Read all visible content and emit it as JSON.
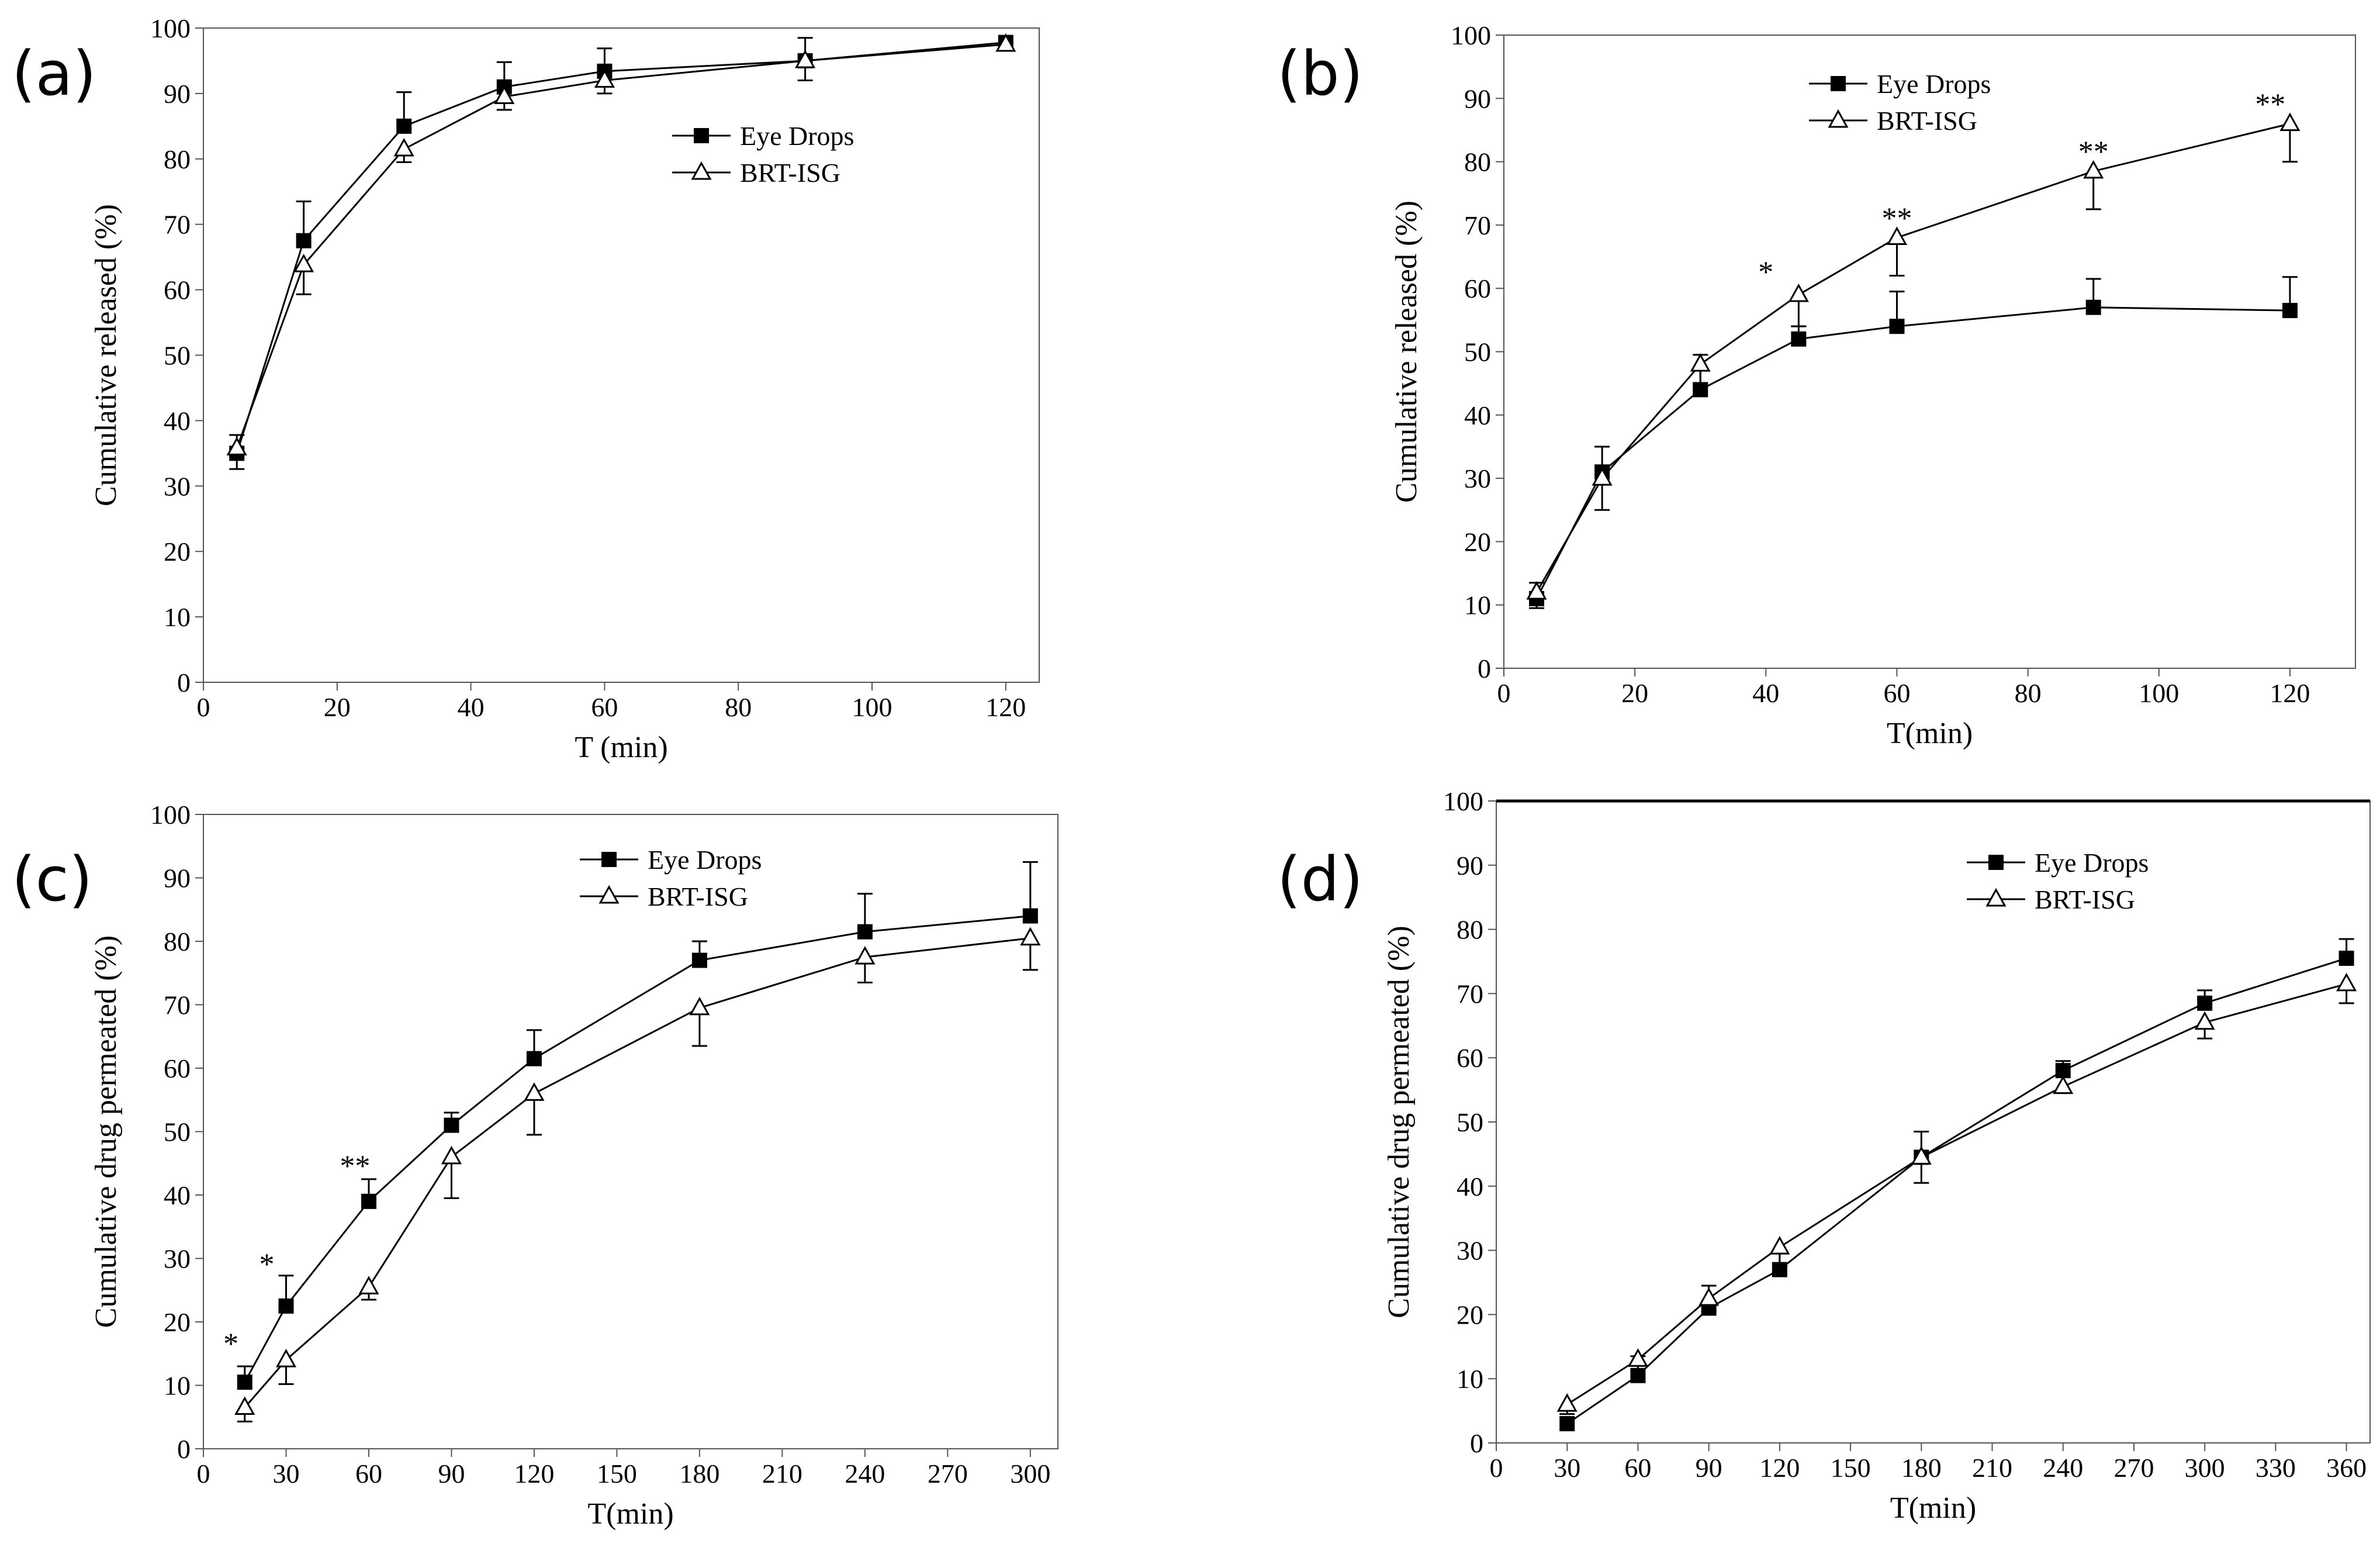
{
  "chart_data": [
    {
      "type": "line",
      "panel_label": "(a)",
      "xlabel": "T (min)",
      "ylabel": "Cumulative released (%)",
      "xlim": [
        0,
        125
      ],
      "ylim": [
        0,
        100
      ],
      "xticks": [
        0,
        20,
        40,
        60,
        80,
        100,
        120
      ],
      "yticks": [
        0,
        10,
        20,
        30,
        40,
        50,
        60,
        70,
        80,
        90,
        100
      ],
      "legend_position": "upper-right",
      "series": [
        {
          "name": "Eye Drops",
          "marker": "square-filled",
          "x": [
            5,
            15,
            30,
            45,
            60,
            90,
            120
          ],
          "y": [
            35.0,
            67.5,
            85.0,
            91.0,
            93.4,
            95.0,
            97.8
          ],
          "err": [
            2.8,
            6.0,
            5.2,
            3.8,
            3.5,
            3.5,
            0.8
          ]
        },
        {
          "name": "BRT-ISG",
          "marker": "triangle-open",
          "x": [
            5,
            15,
            30,
            45,
            60,
            90,
            120
          ],
          "y": [
            35.8,
            63.8,
            81.5,
            89.5,
            92.0,
            95.0,
            97.5
          ],
          "err": [
            3.2,
            4.5,
            2.0,
            2.0,
            2.0,
            3.0,
            0.8
          ]
        }
      ],
      "annotations": []
    },
    {
      "type": "line",
      "panel_label": "(b)",
      "xlabel": "T(min)",
      "ylabel": "Cumulative released (%)",
      "xlim": [
        0,
        130
      ],
      "ylim": [
        0,
        100
      ],
      "xticks": [
        0,
        20,
        40,
        60,
        80,
        100,
        120
      ],
      "yticks": [
        0,
        10,
        20,
        30,
        40,
        50,
        60,
        70,
        80,
        90,
        100
      ],
      "legend_position": "upper-center",
      "series": [
        {
          "name": "Eye Drops",
          "marker": "square-filled",
          "x": [
            5,
            15,
            30,
            45,
            60,
            90,
            120
          ],
          "y": [
            11.0,
            31.0,
            44.0,
            52.0,
            54.0,
            57.0,
            56.5
          ],
          "err": [
            2.5,
            4.0,
            5.5,
            2.0,
            5.5,
            4.5,
            5.3
          ]
        },
        {
          "name": "BRT-ISG",
          "marker": "triangle-open",
          "x": [
            5,
            15,
            30,
            45,
            60,
            90,
            120
          ],
          "y": [
            12.0,
            30.0,
            48.0,
            59.0,
            68.0,
            78.5,
            86.0
          ],
          "err": [
            2.5,
            5.0,
            3.0,
            5.0,
            6.0,
            6.0,
            6.0
          ]
        }
      ],
      "annotations": [
        {
          "text": "*",
          "x": 40,
          "y": 61
        },
        {
          "text": "**",
          "x": 60,
          "y": 69.5
        },
        {
          "text": "**",
          "x": 90,
          "y": 80
        },
        {
          "text": "**",
          "x": 117,
          "y": 87.5
        }
      ]
    },
    {
      "type": "line",
      "panel_label": "(c)",
      "xlabel": "T(min)",
      "ylabel": "Cumulative drug permeated (%)",
      "xlim": [
        0,
        310
      ],
      "ylim": [
        0,
        100
      ],
      "xticks": [
        0,
        30,
        60,
        90,
        120,
        150,
        180,
        210,
        240,
        270,
        300
      ],
      "yticks": [
        0,
        10,
        20,
        30,
        40,
        50,
        60,
        70,
        80,
        90,
        100
      ],
      "legend_position": "upper-center",
      "series": [
        {
          "name": "Eye Drops",
          "marker": "square-filled",
          "x": [
            15,
            30,
            60,
            90,
            120,
            180,
            240,
            300
          ],
          "y": [
            10.5,
            22.5,
            39.0,
            51.0,
            61.5,
            77.0,
            81.5,
            84.0
          ],
          "err": [
            2.5,
            4.8,
            3.5,
            2.0,
            4.5,
            3.0,
            6.0,
            8.5
          ]
        },
        {
          "name": "BRT-ISG",
          "marker": "triangle-open",
          "x": [
            15,
            30,
            60,
            90,
            120,
            180,
            240,
            300
          ],
          "y": [
            6.5,
            14.0,
            25.5,
            46.0,
            56.0,
            69.5,
            77.5,
            80.5
          ],
          "err": [
            2.2,
            3.8,
            2.0,
            6.5,
            6.5,
            6.0,
            4.0,
            5.0
          ]
        }
      ],
      "annotations": [
        {
          "text": "*",
          "x": 10,
          "y": 15
        },
        {
          "text": "*",
          "x": 23,
          "y": 27.5
        },
        {
          "text": "**",
          "x": 55,
          "y": 43
        }
      ]
    },
    {
      "type": "line",
      "panel_label": "(d)",
      "xlabel": "T(min)",
      "ylabel": "Cumulative drug permeated (%)",
      "xlim": [
        0,
        370
      ],
      "ylim": [
        0,
        100
      ],
      "xticks": [
        0,
        30,
        60,
        90,
        120,
        150,
        180,
        210,
        240,
        270,
        300,
        330,
        360
      ],
      "yticks": [
        0,
        10,
        20,
        30,
        40,
        50,
        60,
        70,
        80,
        90,
        100
      ],
      "legend_position": "upper-right",
      "series": [
        {
          "name": "Eye Drops",
          "marker": "square-filled",
          "x": [
            30,
            60,
            90,
            120,
            180,
            240,
            300,
            360
          ],
          "y": [
            3.0,
            10.5,
            21.0,
            27.0,
            44.5,
            58.0,
            68.5,
            75.5
          ],
          "err": [
            0.0,
            3.0,
            3.5,
            2.5,
            4.0,
            1.5,
            2.0,
            3.0
          ]
        },
        {
          "name": "BRT-ISG",
          "marker": "triangle-open",
          "x": [
            30,
            60,
            90,
            120,
            180,
            240,
            300,
            360
          ],
          "y": [
            6.0,
            13.0,
            22.5,
            30.5,
            44.5,
            55.5,
            65.5,
            71.5
          ],
          "err": [
            1.5,
            1.5,
            2.0,
            3.0,
            4.0,
            1.0,
            2.5,
            3.0
          ]
        }
      ],
      "annotations": []
    }
  ]
}
